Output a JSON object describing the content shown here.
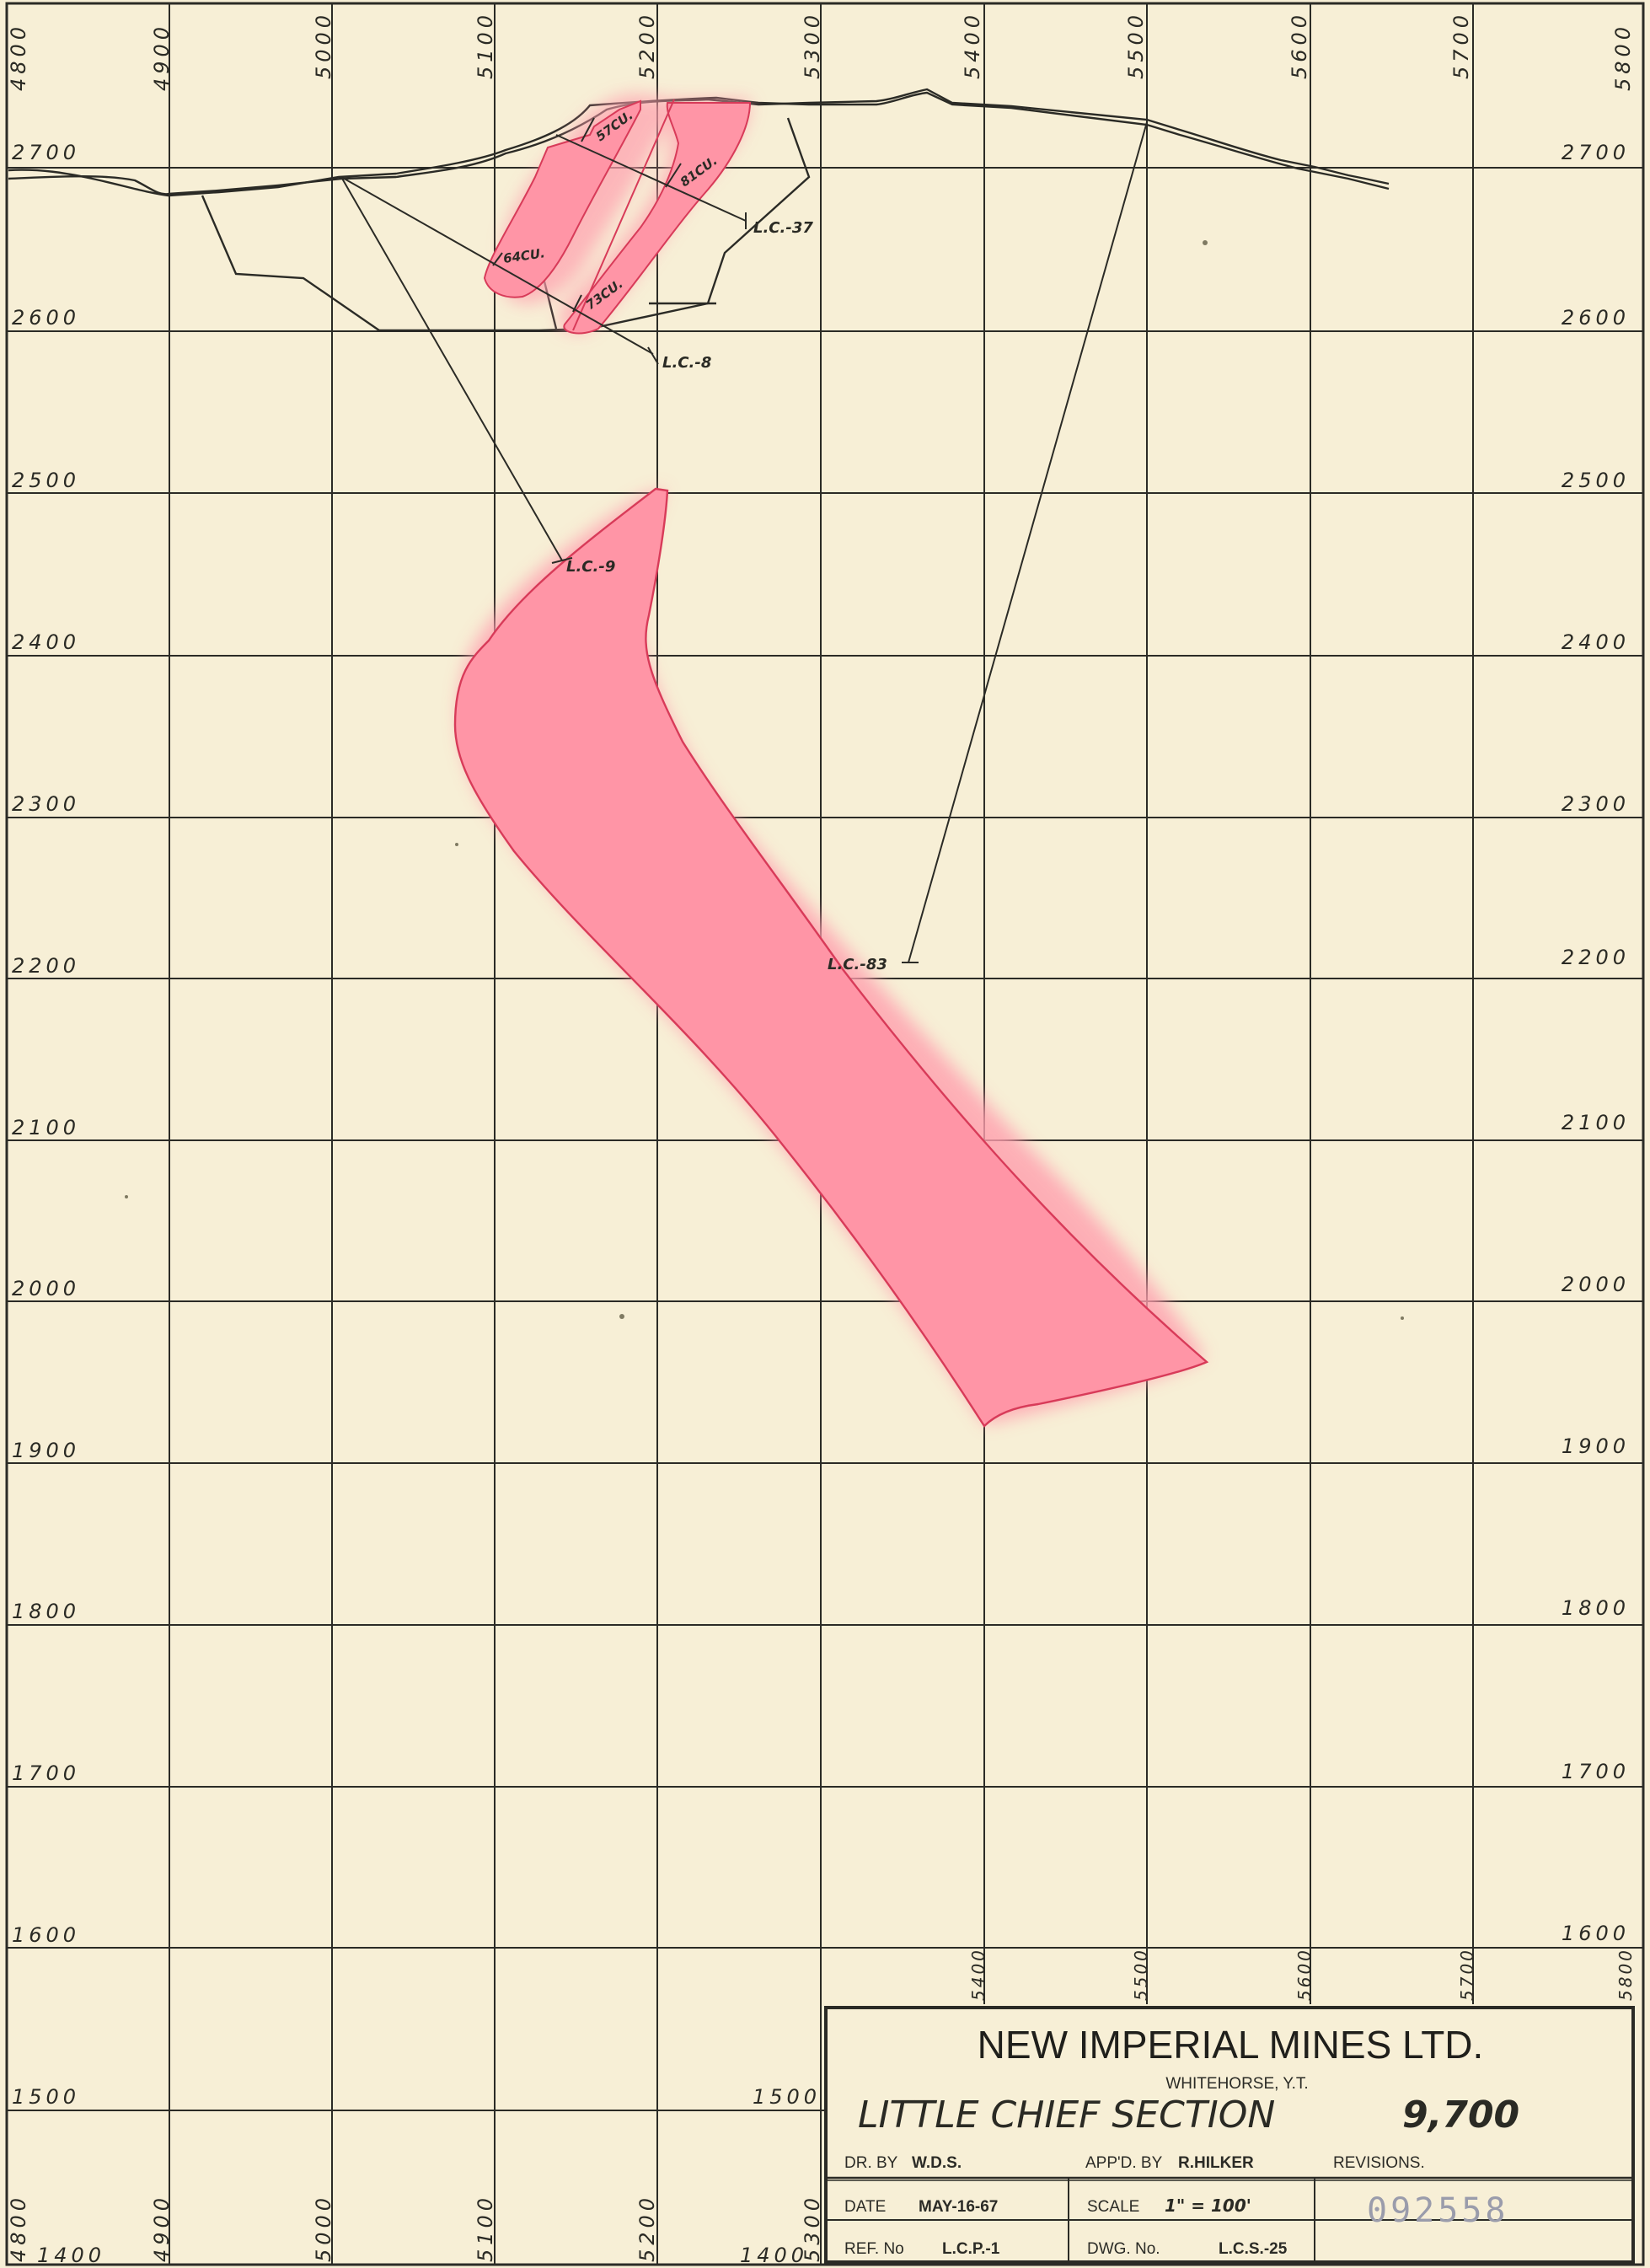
{
  "x_labels": [
    "4800",
    "4900",
    "5000",
    "5100",
    "5200",
    "5300",
    "5400",
    "5500",
    "5600",
    "5700",
    "5800"
  ],
  "y_labels": [
    "2700",
    "2600",
    "2500",
    "2400",
    "2300",
    "2200",
    "2100",
    "2000",
    "1900",
    "1800",
    "1700",
    "1600",
    "1500"
  ],
  "bottom_row_left_label": "1400",
  "inner_label_1500": "1500",
  "inner_label_1400": "1400",
  "drill_holes": {
    "lc37": "L.C.-37",
    "lc8": "L.C.-8",
    "lc9": "L.C.-9",
    "lc83": "L.C.-83"
  },
  "samples": {
    "s57": "57CU.",
    "s81": "81CU.",
    "s64": "64CU.",
    "s73": "73CU."
  },
  "title_block": {
    "company": "NEW IMPERIAL MINES LTD.",
    "location": "WHITEHORSE, Y.T.",
    "section_name": "LITTLE CHIEF SECTION",
    "section_number": "9,700",
    "drawn_by_label": "DR. BY",
    "drawn_by": "W.D.S.",
    "approved_by_label": "APP'D. BY",
    "approved_by": "R.HILKER",
    "revisions_label": "REVISIONS.",
    "date_label": "DATE",
    "date": "MAY-16-67",
    "scale_label": "SCALE",
    "scale": "1\" = 100'",
    "stamp_number": "092558",
    "ref_label": "REF. No",
    "ref": "L.C.P.-1",
    "dwg_label": "DWG. No.",
    "dwg": "L.C.S.-25"
  },
  "colors": {
    "paper": "#f7efd6",
    "ore_fill": "#ff9fae",
    "ore_edge": "#d83b59",
    "ink": "#2b2b26"
  }
}
